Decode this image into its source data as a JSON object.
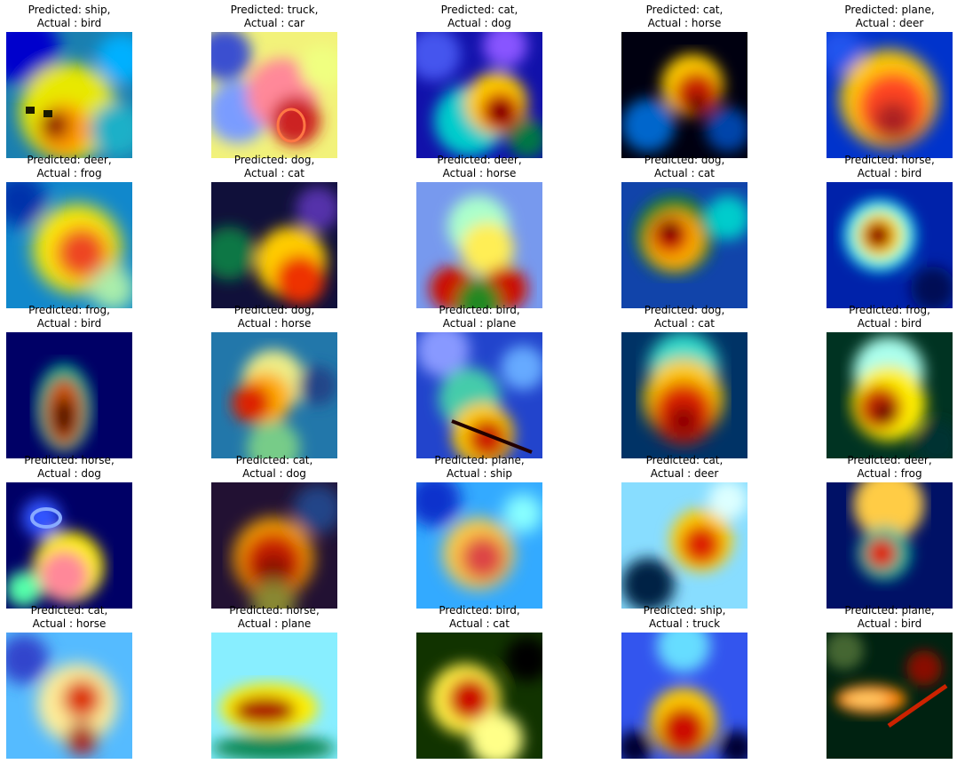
{
  "panels": [
    {
      "predicted": "Predicted: ship,",
      "actual": "Actual : bird"
    },
    {
      "predicted": "Predicted: truck,",
      "actual": "Actual : car"
    },
    {
      "predicted": "Predicted: cat,",
      "actual": "Actual : dog"
    },
    {
      "predicted": "Predicted: cat,",
      "actual": "Actual : horse"
    },
    {
      "predicted": "Predicted: plane,",
      "actual": "Actual : deer"
    },
    {
      "predicted": "Predicted: deer,",
      "actual": "Actual : frog"
    },
    {
      "predicted": "Predicted: dog,",
      "actual": "Actual : cat"
    },
    {
      "predicted": "Predicted: deer,",
      "actual": "Actual : horse"
    },
    {
      "predicted": "Predicted: dog,",
      "actual": "Actual : cat"
    },
    {
      "predicted": "Predicted: horse,",
      "actual": "Actual : bird"
    },
    {
      "predicted": "Predicted: frog,",
      "actual": "Actual : bird"
    },
    {
      "predicted": "Predicted: dog,",
      "actual": "Actual : horse"
    },
    {
      "predicted": "Predicted: bird,",
      "actual": "Actual : plane"
    },
    {
      "predicted": "Predicted: dog,",
      "actual": "Actual : cat"
    },
    {
      "predicted": "Predicted: frog,",
      "actual": "Actual : bird"
    },
    {
      "predicted": "Predicted: horse,",
      "actual": "Actual : dog"
    },
    {
      "predicted": "Predicted: cat,",
      "actual": "Actual : dog"
    },
    {
      "predicted": "Predicted: plane,",
      "actual": "Actual : ship"
    },
    {
      "predicted": "Predicted: cat,",
      "actual": "Actual : deer"
    },
    {
      "predicted": "Predicted: deer,",
      "actual": "Actual : frog"
    },
    {
      "predicted": "Predicted: cat,",
      "actual": "Actual : horse"
    },
    {
      "predicted": "Predicted: horse,",
      "actual": "Actual : plane"
    },
    {
      "predicted": "Predicted: bird,",
      "actual": "Actual : cat"
    },
    {
      "predicted": "Predicted: ship,",
      "actual": "Actual : truck"
    },
    {
      "predicted": "Predicted: plane,",
      "actual": "Actual : bird"
    }
  ],
  "colormap": [
    "#00007f",
    "#0000ff",
    "#00ffff",
    "#ffff00",
    "#ff0000",
    "#7f0000"
  ]
}
